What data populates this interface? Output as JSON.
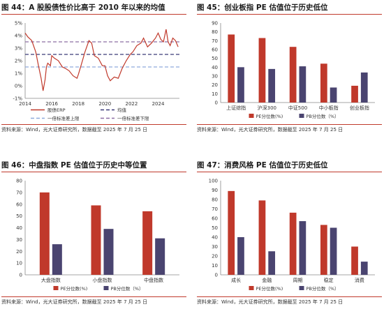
{
  "chart_data": [
    {
      "id": "fig44",
      "type": "line",
      "title": "图 44：A 股股债性价比高于 2010 年以来的均值",
      "source": "资料来源：Wind，光大证券研究所，数据截至 2025 年 7 月 25 日",
      "y_ticks": [
        "-1%",
        "0%",
        "1%",
        "2%",
        "3%",
        "4%",
        "5%"
      ],
      "x_ticks": [
        "2014",
        "2016",
        "2018",
        "2020",
        "2022",
        "2024"
      ],
      "ylim": [
        -1,
        5
      ],
      "xlim": [
        2014,
        2025.6
      ],
      "colors": {
        "erp": "#c0392b",
        "mean": "#3a3a78",
        "upper": "#8faadc",
        "lower": "#8e6fa5"
      },
      "legend": [
        "股债ERP",
        "均值",
        "一倍标准差上限",
        "一倍标准差下限"
      ],
      "mean": 2.5,
      "upper": 3.5,
      "lower": 1.5,
      "series": [
        {
          "name": "股债ERP",
          "x": [
            2014.0,
            2014.2,
            2014.5,
            2014.8,
            2015.0,
            2015.2,
            2015.35,
            2015.5,
            2015.6,
            2015.7,
            2015.9,
            2016.0,
            2016.2,
            2016.5,
            2016.8,
            2017.0,
            2017.3,
            2017.6,
            2017.9,
            2018.0,
            2018.2,
            2018.5,
            2018.8,
            2019.0,
            2019.2,
            2019.5,
            2019.8,
            2020.0,
            2020.2,
            2020.4,
            2020.7,
            2021.0,
            2021.3,
            2021.6,
            2021.9,
            2022.1,
            2022.4,
            2022.7,
            2022.9,
            2023.2,
            2023.5,
            2023.8,
            2024.0,
            2024.2,
            2024.4,
            2024.6,
            2024.75,
            2024.9,
            2025.1,
            2025.3,
            2025.5
          ],
          "values": [
            4.2,
            3.9,
            3.6,
            2.7,
            1.6,
            0.6,
            -0.4,
            0.5,
            1.5,
            1.8,
            1.6,
            2.4,
            2.2,
            2.0,
            1.5,
            1.4,
            1.2,
            0.8,
            0.6,
            0.9,
            1.6,
            2.7,
            3.6,
            3.4,
            2.4,
            2.2,
            1.6,
            1.6,
            0.8,
            0.4,
            0.7,
            0.6,
            1.4,
            2.0,
            2.5,
            2.7,
            3.2,
            3.4,
            3.8,
            3.1,
            3.4,
            3.8,
            4.2,
            3.7,
            3.5,
            4.5,
            3.5,
            3.2,
            3.8,
            3.6,
            3.1
          ]
        }
      ]
    },
    {
      "id": "fig45",
      "type": "bar",
      "title": "图 45：创业板指 PE 估值位于历史低位",
      "source": "资料来源：Wind，光大证券研究所，数据截至 2025 年 7 月 25 日",
      "y_ticks": [
        "0",
        "10",
        "20",
        "30",
        "40",
        "50",
        "60",
        "70",
        "80",
        "90"
      ],
      "ylim": [
        0,
        90
      ],
      "categories": [
        "上证综指",
        "沪深300",
        "中证500",
        "中小板指",
        "创业板指"
      ],
      "series": [
        {
          "name": "PE分位数(%)",
          "color": "#c0392b",
          "values": [
            77,
            73,
            63,
            44,
            19
          ]
        },
        {
          "name": "PB分位数（%）",
          "color": "#4a4470",
          "values": [
            40,
            38,
            41,
            17,
            34
          ]
        }
      ]
    },
    {
      "id": "fig46",
      "type": "bar",
      "title": "图 46：中盘指数 PE 估值位于历史中等位置",
      "source": "资料来源：Wind，光大证券研究所，数据截至 2025 年 7 月 25 日",
      "y_ticks": [
        "0",
        "10",
        "20",
        "30",
        "40",
        "50",
        "60",
        "70",
        "80"
      ],
      "ylim": [
        0,
        80
      ],
      "categories": [
        "大盘指数",
        "小盘指数",
        "中盘指数"
      ],
      "series": [
        {
          "name": "PE分位数(%)",
          "color": "#c0392b",
          "values": [
            70,
            59,
            54
          ]
        },
        {
          "name": "PB分位数（%）",
          "color": "#4a4470",
          "values": [
            26,
            39,
            31
          ]
        }
      ]
    },
    {
      "id": "fig47",
      "type": "bar",
      "title": "图 47：消费风格 PE 估值位于历史低位",
      "source": "资料来源：Wind，光大证券研究所，数据截至 2025 年 7 月 25 日",
      "y_ticks": [
        "0",
        "10",
        "20",
        "30",
        "40",
        "50",
        "60",
        "70",
        "80",
        "90",
        "100"
      ],
      "ylim": [
        0,
        100
      ],
      "categories": [
        "成长",
        "金融",
        "周期",
        "稳定",
        "消费"
      ],
      "series": [
        {
          "name": "PE分位数(%)",
          "color": "#c0392b",
          "values": [
            89,
            79,
            66,
            53,
            30
          ]
        },
        {
          "name": "PB分位数（%）",
          "color": "#4a4470",
          "values": [
            40,
            25,
            57,
            50,
            14
          ]
        }
      ]
    }
  ]
}
